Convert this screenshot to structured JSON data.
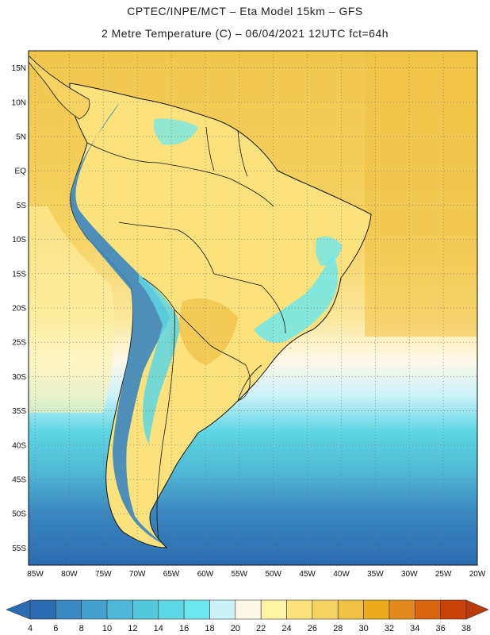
{
  "header": {
    "line1": "CPTEC/INPE/MCT –  Eta Model 15km – GFS",
    "line2": "2 Metre Temperature (C) – 06/04/2021 12UTC fct=64h"
  },
  "map": {
    "lat_labels": [
      "15N",
      "10N",
      "5N",
      "EQ",
      "5S",
      "10S",
      "15S",
      "20S",
      "25S",
      "30S",
      "35S",
      "40S",
      "45S",
      "50S",
      "55S"
    ],
    "lat_values": [
      15,
      10,
      5,
      0,
      -5,
      -10,
      -15,
      -20,
      -25,
      -30,
      -35,
      -40,
      -45,
      -50,
      -55
    ],
    "lon_labels": [
      "85W",
      "80W",
      "75W",
      "70W",
      "65W",
      "60W",
      "55W",
      "50W",
      "45W",
      "40W",
      "35W",
      "30W",
      "25W",
      "20W"
    ],
    "lon_values": [
      -85,
      -80,
      -75,
      -70,
      -65,
      -60,
      -55,
      -50,
      -45,
      -40,
      -35,
      -30,
      -25,
      -20
    ],
    "lat_range": [
      -57.5,
      17.5
    ],
    "lon_range": [
      -86,
      -20
    ]
  },
  "colorbar": {
    "labels": [
      "4",
      "6",
      "8",
      "10",
      "12",
      "14",
      "16",
      "18",
      "20",
      "22",
      "24",
      "26",
      "28",
      "30",
      "32",
      "34",
      "36",
      "38"
    ],
    "colors": [
      "#2b6cb0",
      "#3a86bf",
      "#44a0cc",
      "#4fb8d6",
      "#56c8dc",
      "#5ed6e3",
      "#6ee8ec",
      "#cdf3fa",
      "#fff8e6",
      "#fff3a6",
      "#fbe27c",
      "#f6d262",
      "#f0c144",
      "#eba91c",
      "#e38a1e",
      "#d96512",
      "#c8420a"
    ],
    "left_arrow_color": "#2b6cb0",
    "right_arrow_color": "#b83d0a"
  }
}
